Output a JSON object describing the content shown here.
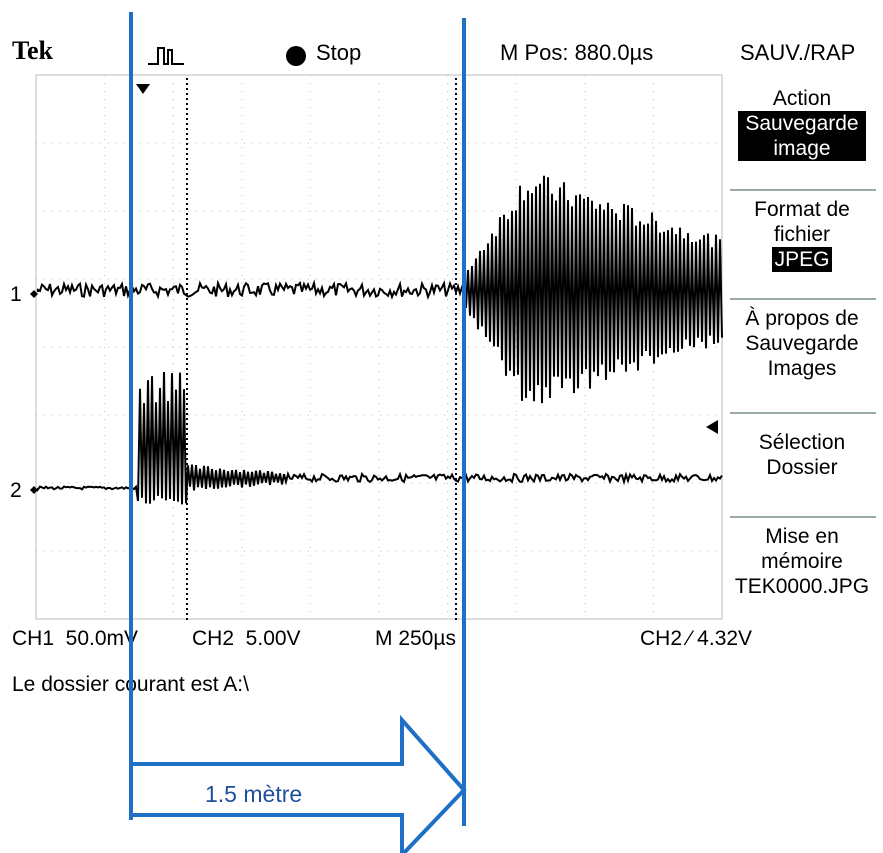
{
  "header": {
    "brand": "Tek",
    "trigger_icon": "trigger-pulse-icon",
    "run_state": "Stop",
    "mpos": "M Pos: 880.0µs",
    "menu_title": "SAUV./RAP"
  },
  "menu": {
    "action_label": "Action",
    "action_value_line1": "Sauvegarde",
    "action_value_line2": "image",
    "format_label_line1": "Format de",
    "format_label_line2": "fichier",
    "format_value": "JPEG",
    "about_line1": "À propos de",
    "about_line2": "Sauvegarde",
    "about_line3": "Images",
    "select_line1": "Sélection",
    "select_line2": "Dossier",
    "save_line1": "Mise en",
    "save_line2": "mémoire",
    "save_line3": "TEK0000.JPG"
  },
  "channels": {
    "ch1_marker": "1",
    "ch2_marker": "2"
  },
  "status": {
    "ch1": "CH1  50.0mV",
    "ch2": "CH2  5.00V",
    "timebase": "M 250µs",
    "trigger": "CH2 ∕ 4.32V",
    "message": "Le dossier courant est A:\\"
  },
  "annotation": {
    "distance_label": "1.5 mètre",
    "line_color": "#1f6fc6"
  },
  "colors": {
    "trace": "#000000",
    "grid": "#bbbbbb",
    "highlight_bg": "#000000",
    "highlight_fg": "#ffffff"
  }
}
